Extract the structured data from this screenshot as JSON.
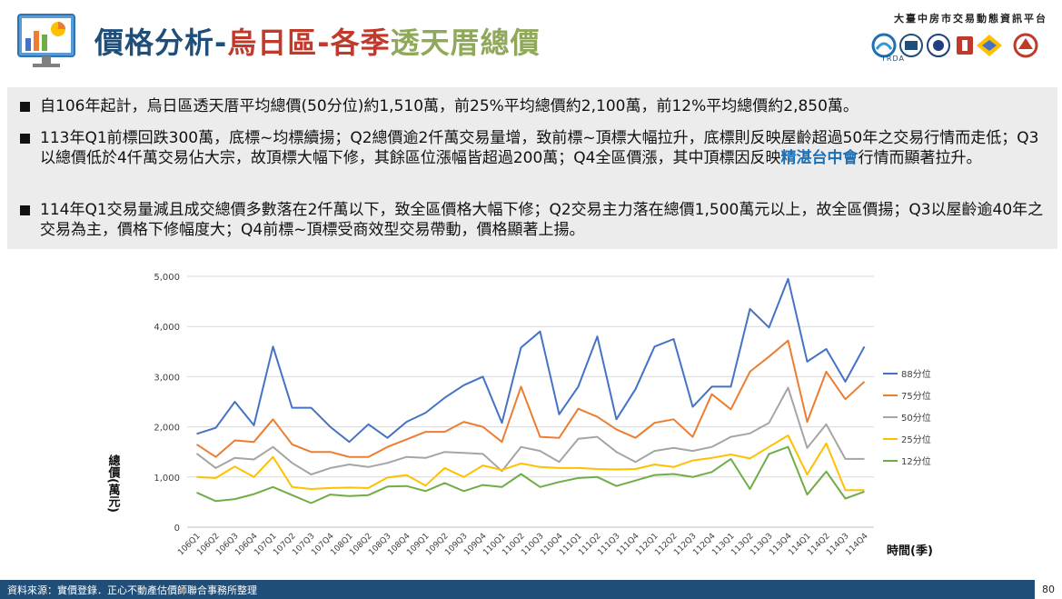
{
  "header": {
    "title_part1": "價格分析-",
    "title_part2": "烏日區-各季",
    "title_part3": "透天厝總價",
    "brand": "大臺中房市交易動態資訊平台",
    "brand_sub": "TRDA",
    "icon": "analytics-chart-icon"
  },
  "bullets": [
    {
      "text": "自106年起計，烏日區透天厝平均總價(50分位)約1,510萬，前25%平均總價約2,100萬，前12%平均總價約2,850萬。"
    },
    {
      "text_before": "113年Q1前標回跌300萬，底標~均標續揚；Q2總價逾2仟萬交易量增，致前標~頂標大幅拉升，底標則反映屋齡超過50年之交易行情而走低；Q3以總價低於4仟萬交易佔大宗，故頂標大幅下修，其餘區位漲幅皆超過200萬；Q4全區價漲，其中頂標因反映",
      "highlight": "精湛台中會",
      "text_after": "行情而顯著拉升。"
    },
    {
      "text": "114年Q1交易量減且成交總價多數落在2仟萬以下，致全區價格大幅下修；Q2交易主力落在總價1,500萬元以上，故全區價揚；Q3以屋齡逾40年之交易為主，價格下修幅度大；Q4前標~頂標受商效型交易帶動，價格顯著上揚。"
    }
  ],
  "footer": {
    "source": "資料來源：實價登錄．正心不動產估價師聯合事務所整理",
    "page": "80"
  },
  "chart_data": {
    "type": "line",
    "xlabel": "時間(季)",
    "ylabel": "總價(萬元)",
    "ylim": [
      0,
      5000
    ],
    "yticks": [
      0,
      1000,
      2000,
      3000,
      4000,
      5000
    ],
    "ytick_labels": [
      "0",
      "1,000",
      "2,000",
      "3,000",
      "4,000",
      "5,000"
    ],
    "categories": [
      "106Q1",
      "106Q2",
      "106Q3",
      "106Q4",
      "107Q1",
      "107Q2",
      "107Q3",
      "107Q4",
      "108Q1",
      "108Q2",
      "108Q3",
      "108Q4",
      "109Q1",
      "109Q2",
      "109Q3",
      "109Q4",
      "110Q1",
      "110Q2",
      "110Q3",
      "110Q4",
      "111Q1",
      "111Q2",
      "111Q3",
      "111Q4",
      "112Q1",
      "112Q2",
      "112Q3",
      "112Q4",
      "113Q1",
      "113Q2",
      "113Q3",
      "113Q4",
      "114Q1",
      "114Q2",
      "114Q3",
      "114Q4"
    ],
    "legend_position": "right",
    "series": [
      {
        "name": "88分位",
        "color": "#4472c4",
        "values": [
          1860,
          1980,
          2500,
          2030,
          3600,
          2380,
          2380,
          2000,
          1700,
          2050,
          1780,
          2100,
          2280,
          2580,
          2830,
          3000,
          2080,
          3580,
          3900,
          2250,
          2800,
          3800,
          2150,
          2750,
          3600,
          3750,
          2400,
          2800,
          2800,
          4350,
          3980,
          4950,
          3300,
          3550,
          2900,
          3600
        ]
      },
      {
        "name": "75分位",
        "color": "#ed7d31",
        "values": [
          1650,
          1400,
          1730,
          1700,
          2150,
          1650,
          1500,
          1500,
          1400,
          1400,
          1600,
          1750,
          1900,
          1900,
          2100,
          2000,
          1700,
          2800,
          1800,
          1780,
          2360,
          2200,
          1950,
          1780,
          2080,
          2150,
          1800,
          2650,
          2350,
          3100,
          3400,
          3720,
          2100,
          3100,
          2550,
          2900
        ]
      },
      {
        "name": "50分位",
        "color": "#a5a5a5",
        "values": [
          1470,
          1180,
          1380,
          1350,
          1600,
          1280,
          1050,
          1180,
          1250,
          1200,
          1280,
          1400,
          1380,
          1500,
          1480,
          1460,
          1120,
          1600,
          1520,
          1300,
          1760,
          1800,
          1500,
          1300,
          1520,
          1580,
          1520,
          1600,
          1800,
          1870,
          2080,
          2780,
          1580,
          2050,
          1360,
          1360
        ]
      },
      {
        "name": "25分位",
        "color": "#ffc000",
        "values": [
          1000,
          980,
          1210,
          1000,
          1400,
          800,
          760,
          780,
          790,
          780,
          990,
          1040,
          830,
          1180,
          1000,
          1230,
          1140,
          1270,
          1200,
          1180,
          1180,
          1160,
          1150,
          1160,
          1250,
          1200,
          1330,
          1380,
          1450,
          1370,
          1600,
          1830,
          1050,
          1670,
          740,
          740
        ]
      },
      {
        "name": "12分位",
        "color": "#70ad47",
        "values": [
          690,
          520,
          560,
          660,
          800,
          640,
          480,
          650,
          620,
          640,
          810,
          820,
          720,
          880,
          720,
          840,
          800,
          1060,
          800,
          900,
          980,
          1000,
          820,
          930,
          1040,
          1060,
          1000,
          1100,
          1360,
          760,
          1460,
          1600,
          650,
          1110,
          570,
          710
        ]
      }
    ]
  }
}
